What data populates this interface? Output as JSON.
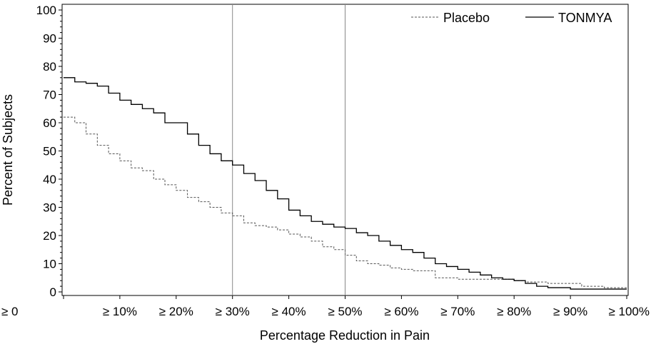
{
  "chart_data": {
    "type": "line",
    "title": "",
    "xlabel": "Percentage Reduction in Pain",
    "ylabel": "Percent of Subjects",
    "xlim": [
      0,
      100
    ],
    "ylim": [
      0,
      100
    ],
    "x_tick_values": [
      0,
      10,
      20,
      30,
      40,
      50,
      60,
      70,
      80,
      90,
      100
    ],
    "x_tick_labels": [
      "≥ 0",
      "≥ 10%",
      "≥ 20%",
      "≥ 30%",
      "≥ 40%",
      "≥ 50%",
      "≥ 60%",
      "≥ 70%",
      "≥ 80%",
      "≥ 90%",
      "≥ 100%"
    ],
    "y_ticks": [
      0,
      10,
      20,
      30,
      40,
      50,
      60,
      70,
      80,
      90,
      100
    ],
    "reference_lines_x": [
      30,
      50
    ],
    "grid": false,
    "legend_position": "top-right",
    "series": [
      {
        "name": "Placebo",
        "line_style": "dashed",
        "color": "#555555",
        "x": [
          0,
          2,
          4,
          6,
          8,
          10,
          12,
          14,
          16,
          18,
          20,
          22,
          24,
          26,
          28,
          30,
          32,
          34,
          36,
          38,
          40,
          42,
          44,
          46,
          48,
          50,
          52,
          54,
          56,
          58,
          60,
          62,
          64,
          66,
          68,
          70,
          72,
          74,
          76,
          78,
          80,
          82,
          84,
          86,
          88,
          90,
          92,
          94,
          96,
          98,
          100
        ],
        "y": [
          62,
          60,
          56,
          52,
          49,
          46.5,
          44,
          43,
          40,
          38,
          36,
          33.5,
          32,
          30,
          28,
          27,
          24.5,
          23.5,
          23,
          22,
          20.5,
          19.5,
          18,
          16,
          15,
          13,
          11,
          10,
          9.5,
          8.5,
          8,
          7.5,
          7.5,
          5,
          5,
          4.5,
          4.5,
          4.5,
          4.5,
          4.5,
          4,
          3.5,
          3.5,
          3,
          3,
          3,
          2,
          2,
          1.5,
          1.5,
          1.5
        ]
      },
      {
        "name": "TONMYA",
        "line_style": "solid",
        "color": "#000000",
        "x": [
          0,
          2,
          4,
          6,
          8,
          10,
          12,
          14,
          16,
          18,
          20,
          22,
          24,
          26,
          28,
          30,
          32,
          34,
          36,
          38,
          40,
          42,
          44,
          46,
          48,
          50,
          52,
          54,
          56,
          58,
          60,
          62,
          64,
          66,
          68,
          70,
          72,
          74,
          76,
          78,
          80,
          82,
          84,
          86,
          88,
          90,
          92,
          94,
          96,
          98,
          100
        ],
        "y": [
          76,
          74.5,
          74,
          73,
          70.5,
          68,
          66.5,
          65,
          63.5,
          60,
          60,
          56,
          52,
          49,
          46.5,
          45,
          42,
          39.5,
          36,
          33,
          29,
          27,
          25,
          24,
          23,
          22.5,
          21,
          20,
          18,
          16.5,
          15,
          14,
          12,
          10,
          9,
          8,
          7,
          6,
          5,
          4.5,
          4,
          3,
          2,
          1.5,
          1.5,
          1,
          1,
          1,
          1,
          1,
          1
        ]
      }
    ]
  }
}
